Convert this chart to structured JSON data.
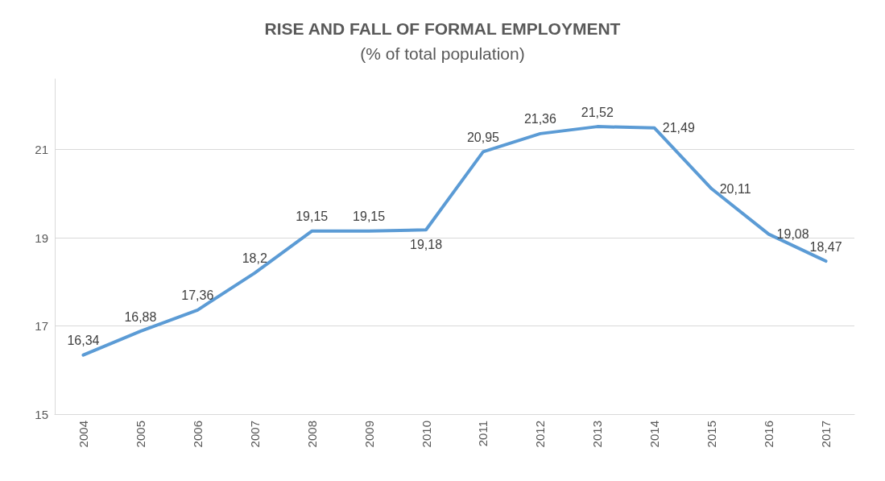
{
  "chart_data": {
    "type": "line",
    "title": "RISE AND FALL OF FORMAL EMPLOYMENT",
    "subtitle": "(% of total population)",
    "categories": [
      "2004",
      "2005",
      "2006",
      "2007",
      "2008",
      "2009",
      "2010",
      "2011",
      "2012",
      "2013",
      "2014",
      "2015",
      "2016",
      "2017"
    ],
    "series": [
      {
        "color": "#5b9bd5",
        "values": [
          16.34,
          16.88,
          17.36,
          18.2,
          19.15,
          19.15,
          19.18,
          20.95,
          21.36,
          21.52,
          21.49,
          20.11,
          19.08,
          18.47
        ],
        "value_labels": [
          "16,34",
          "16,88",
          "17,36",
          "18,2",
          "19,15",
          "19,15",
          "19,18",
          "20,95",
          "21,36",
          "21,52",
          "21,49",
          "20,11",
          "19,08",
          "18,47"
        ]
      }
    ],
    "ylim": [
      15,
      22.6
    ],
    "yticks": [
      15,
      17,
      19,
      21
    ],
    "grid": "y",
    "marker": "none",
    "line_style": "solid"
  }
}
